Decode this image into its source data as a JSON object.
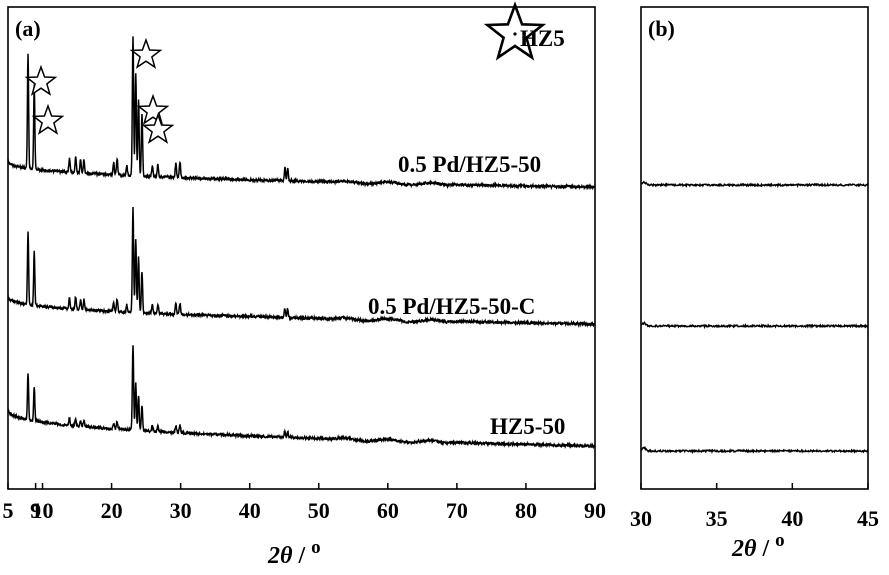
{
  "chart_data": [
    {
      "panel": "(a)",
      "type": "line",
      "xlim": [
        5,
        90
      ],
      "xticks": [
        5,
        9,
        10,
        20,
        30,
        40,
        50,
        60,
        70,
        80,
        90
      ],
      "tick_labels": [
        "5",
        "9",
        "10",
        "20",
        "30",
        "40",
        "50",
        "60",
        "70",
        "80",
        "90"
      ],
      "xlabel": "2θ / o",
      "legend": {
        "symbol": "star",
        "label": "HZ5",
        "placement": "top-right"
      },
      "series": [
        {
          "name": "0.5 Pd/HZ5-50",
          "peaks": [
            [
              7.9,
              0.82
            ],
            [
              8.8,
              0.6
            ],
            [
              13.9,
              0.1
            ],
            [
              14.8,
              0.12
            ],
            [
              15.5,
              0.09
            ],
            [
              16.0,
              0.1
            ],
            [
              20.3,
              0.09
            ],
            [
              20.8,
              0.12
            ],
            [
              22.2,
              0.07
            ],
            [
              23.1,
              1.0
            ],
            [
              23.5,
              0.74
            ],
            [
              23.9,
              0.55
            ],
            [
              24.4,
              0.44
            ],
            [
              25.9,
              0.08
            ],
            [
              26.7,
              0.09
            ],
            [
              29.3,
              0.1
            ],
            [
              29.9,
              0.11
            ],
            [
              45.1,
              0.09
            ],
            [
              45.5,
              0.09
            ]
          ],
          "markers_at": [
            7.9,
            8.8,
            23.1,
            23.9,
            24.4
          ]
        },
        {
          "name": "0.5 Pd/HZ5-50-C",
          "peaks": [
            [
              7.9,
              0.7
            ],
            [
              8.8,
              0.52
            ],
            [
              13.9,
              0.1
            ],
            [
              14.8,
              0.12
            ],
            [
              15.5,
              0.09
            ],
            [
              16.0,
              0.1
            ],
            [
              20.3,
              0.09
            ],
            [
              20.8,
              0.12
            ],
            [
              22.2,
              0.07
            ],
            [
              23.1,
              1.0
            ],
            [
              23.5,
              0.7
            ],
            [
              23.9,
              0.53
            ],
            [
              24.4,
              0.4
            ],
            [
              25.9,
              0.08
            ],
            [
              26.7,
              0.09
            ],
            [
              29.3,
              0.1
            ],
            [
              29.9,
              0.11
            ],
            [
              45.1,
              0.09
            ],
            [
              45.5,
              0.09
            ]
          ]
        },
        {
          "name": "HZ5-50",
          "peaks": [
            [
              7.9,
              0.55
            ],
            [
              8.8,
              0.4
            ],
            [
              13.9,
              0.08
            ],
            [
              14.8,
              0.09
            ],
            [
              15.5,
              0.07
            ],
            [
              16.0,
              0.08
            ],
            [
              20.3,
              0.07
            ],
            [
              20.8,
              0.09
            ],
            [
              23.1,
              1.0
            ],
            [
              23.5,
              0.55
            ],
            [
              23.9,
              0.42
            ],
            [
              24.4,
              0.3
            ],
            [
              25.9,
              0.06
            ],
            [
              26.7,
              0.07
            ],
            [
              29.3,
              0.08
            ],
            [
              29.9,
              0.09
            ],
            [
              45.1,
              0.07
            ],
            [
              45.5,
              0.07
            ]
          ]
        }
      ]
    },
    {
      "panel": "(b)",
      "type": "line",
      "xlim": [
        30,
        45
      ],
      "xticks": [
        30,
        35,
        40,
        45
      ],
      "tick_labels": [
        "30",
        "35",
        "40",
        "45"
      ],
      "xlabel": "2θ / o",
      "series_count": 3
    }
  ]
}
